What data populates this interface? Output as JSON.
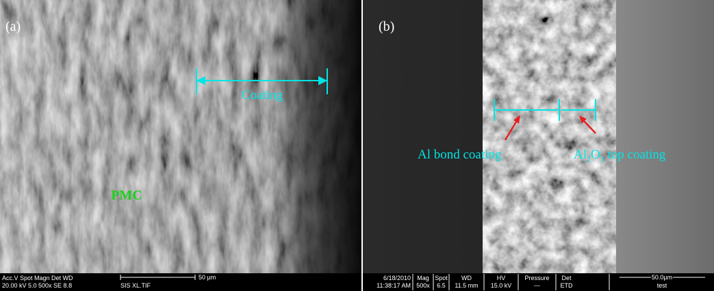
{
  "panel_a": {
    "label": "(a)",
    "coating_label": "Coating",
    "substrate_label": "PMC",
    "info": {
      "header": "Acc.V  Spot  Magn  Det  WD",
      "values": "20.00 kV  5.0    500x   SE   8.8",
      "scale": "50 µm",
      "file": "SIS XL.TIF"
    }
  },
  "panel_b": {
    "label": "(b)",
    "bond_label": "Al bond coating",
    "top_label": [
      "Al",
      "2",
      "O",
      "3",
      " top coating"
    ],
    "info": {
      "date": "6/18/2010",
      "time": "11:38:17 AM",
      "fields": [
        {
          "name": "Mag",
          "value": "500x"
        },
        {
          "name": "Spot",
          "value": "6.5"
        },
        {
          "name": "WD",
          "value": "11.5 mm"
        },
        {
          "name": "HV",
          "value": "15.0 kV"
        },
        {
          "name": "Pressure",
          "value": "---"
        },
        {
          "name": "Det",
          "value": "ETD"
        }
      ],
      "scale": "50.0µm",
      "sample": "test"
    }
  }
}
